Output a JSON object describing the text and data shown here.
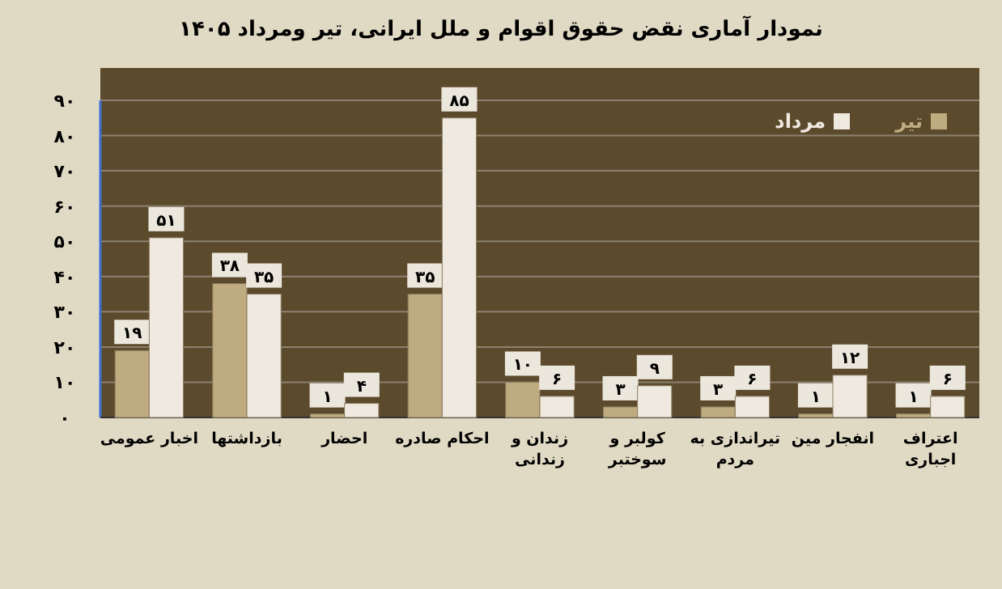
{
  "chart_data": {
    "type": "bar",
    "title": "نمودار آماری نقض حقوق اقوام و ملل ایرانی، تیر ومرداد ۱۴۰۵",
    "categories": [
      "اخبار عمومی",
      "بازداشتها",
      "احضار",
      "احکام صادره",
      "زندان و زندانی",
      "کولبر و سوختبر",
      "تیراندازی به مردم",
      "انفجار مین",
      "اعتراف اجباری"
    ],
    "series": [
      {
        "name": "تیر",
        "color": "#bfab80",
        "values": [
          19,
          38,
          1,
          35,
          10,
          3,
          3,
          1,
          1
        ],
        "value_labels": [
          "۱۹",
          "۳۸",
          "۱",
          "۳۵",
          "۱۰",
          "۳",
          "۳",
          "۱",
          "۱"
        ]
      },
      {
        "name": "مرداد",
        "color": "#efe9e0",
        "values": [
          51,
          35,
          4,
          85,
          6,
          9,
          6,
          12,
          6
        ],
        "value_labels": [
          "۵۱",
          "۳۵",
          "۴",
          "۸۵",
          "۶",
          "۹",
          "۶",
          "۱۲",
          "۶"
        ]
      }
    ],
    "ylim": [
      0,
      90
    ],
    "yticks": [
      {
        "value": 0,
        "label": "۰"
      },
      {
        "value": 10,
        "label": "۱۰"
      },
      {
        "value": 20,
        "label": "۲۰"
      },
      {
        "value": 30,
        "label": "۳۰"
      },
      {
        "value": 40,
        "label": "۴۰"
      },
      {
        "value": 50,
        "label": "۵۰"
      },
      {
        "value": 60,
        "label": "۶۰"
      },
      {
        "value": 70,
        "label": "۷۰"
      },
      {
        "value": 80,
        "label": "۸۰"
      },
      {
        "value": 90,
        "label": "۹۰"
      }
    ],
    "grid": "y",
    "legend": "top right"
  }
}
